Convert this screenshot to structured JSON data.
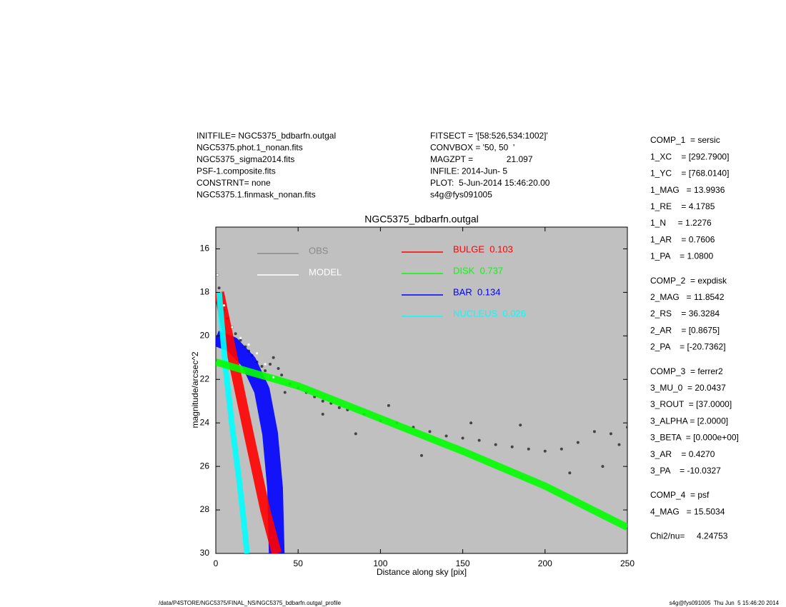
{
  "chart_data": {
    "type": "scatter",
    "title": "NGC5375_bdbarfn.outgal",
    "x_label": "Distance along sky [pix]",
    "y_label": "magnitude/arcsec^2",
    "xlim": [
      0,
      250
    ],
    "ylim": [
      30,
      15
    ],
    "xticks": [
      0,
      50,
      100,
      150,
      200,
      250
    ],
    "yticks": [
      16,
      18,
      20,
      22,
      24,
      26,
      28,
      30
    ],
    "background": "#c0c0c0",
    "series": [
      {
        "name": "OBS",
        "color": "#444444",
        "legend_color": "#8a8a8a",
        "mode": "markers",
        "x": [
          1,
          2,
          3,
          5,
          7,
          10,
          12,
          15,
          18,
          20,
          22,
          25,
          28,
          30,
          33,
          35,
          38,
          40,
          45,
          50,
          55,
          60,
          65,
          70,
          75,
          80,
          90,
          100,
          110,
          120,
          130,
          140,
          150,
          160,
          170,
          180,
          190,
          200,
          210,
          220,
          230,
          240,
          245,
          250,
          42,
          65,
          85,
          105,
          125,
          155,
          185,
          215,
          235
        ],
        "y": [
          17.2,
          17.8,
          18.3,
          18.8,
          19.2,
          19.6,
          19.9,
          20.2,
          20.5,
          20.7,
          20.9,
          21.2,
          21.4,
          21.6,
          21.3,
          21.0,
          21.5,
          21.8,
          22.2,
          22.4,
          22.6,
          22.8,
          23.0,
          23.1,
          23.3,
          23.4,
          23.6,
          23.9,
          24.0,
          24.2,
          24.4,
          24.6,
          24.7,
          24.8,
          25.0,
          25.1,
          25.2,
          25.3,
          25.2,
          24.9,
          24.4,
          24.5,
          25.0,
          24.2,
          22.6,
          23.6,
          24.5,
          23.2,
          25.5,
          24.0,
          24.1,
          26.3,
          26.0
        ]
      },
      {
        "name": "MODEL",
        "color": "#ffffff",
        "mode": "markers",
        "x": [
          1,
          5,
          10,
          15,
          20,
          25,
          30,
          35
        ],
        "y": [
          17.2,
          18.6,
          19.6,
          20.1,
          20.4,
          20.8,
          21.3,
          21.9
        ]
      },
      {
        "name": "BULGE  0.103",
        "color": "#ff0000",
        "mode": "lines",
        "x": [
          2,
          10,
          20,
          30,
          37
        ],
        "y": [
          18.0,
          20.9,
          24.5,
          28.0,
          30.0
        ]
      },
      {
        "name": "DISK  0.737",
        "color": "#00ff00",
        "mode": "lines",
        "x": [
          0,
          50,
          100,
          150,
          200,
          250
        ],
        "y": [
          21.2,
          22.3,
          23.8,
          25.3,
          26.9,
          28.8
        ]
      },
      {
        "name": "BAR  0.134",
        "color": "#0000ff",
        "mode": "lines",
        "x": [
          0,
          10,
          20,
          28,
          33,
          36,
          37
        ],
        "y": [
          20.1,
          20.4,
          21.2,
          22.5,
          24.5,
          27.0,
          30.0
        ]
      },
      {
        "name": "NUCLEUS  0.026",
        "color": "#00ffff",
        "mode": "lines",
        "x": [
          2,
          6,
          10,
          14,
          17,
          19
        ],
        "y": [
          18.0,
          21.5,
          24.2,
          26.5,
          28.5,
          30.0
        ]
      }
    ]
  },
  "header": {
    "left": [
      "INITFILE= NGC5375_bdbarfn.outgal",
      "NGC5375.phot.1_nonan.fits",
      "NGC5375_sigma2014.fits",
      "PSF-1.composite.fits",
      "CONSTRNT= none",
      "NGC5375.1.finmask_nonan.fits"
    ],
    "middle": [
      "FITSECT = '[58:526,534:1002]'",
      "CONVBOX = '50, 50  '",
      "MAGZPT =              21.097",
      "INFILE: 2014-Jun- 5",
      "PLOT:  5-Jun-2014 15:46:20.00",
      "s4g@fys091005"
    ]
  },
  "params": [
    [
      "COMP_1  = sersic",
      "1_XC    = [292.7900]",
      "1_YC    = [768.0140]",
      "1_MAG   = 13.9936",
      "1_RE    = 4.1785",
      "1_N     = 1.2276",
      "1_AR    = 0.7606",
      "1_PA    = 1.0800"
    ],
    [
      "COMP_2  = expdisk",
      "2_MAG   = 11.8542",
      "2_RS    = 36.3284",
      "2_AR    = [0.8675]",
      "2_PA    = [-20.7362]"
    ],
    [
      "COMP_3  = ferrer2",
      "3_MU_0  = 20.0437",
      "3_ROUT  = [37.0000]",
      "3_ALPHA = [2.0000]",
      "3_BETA  = [0.000e+00]",
      "3_AR    = 0.4270",
      "3_PA    = -10.0327"
    ],
    [
      "COMP_4  = psf",
      "4_MAG   = 15.5034"
    ],
    [
      "Chi2/nu=     4.24753"
    ]
  ],
  "footer": {
    "left": "/data/P4STORE/NGC5375/FINAL_NS/NGC5375_bdbarfn.outgal_profile",
    "right": "s4g@fys091005  Thu Jun  5 15:46:20 2014"
  }
}
